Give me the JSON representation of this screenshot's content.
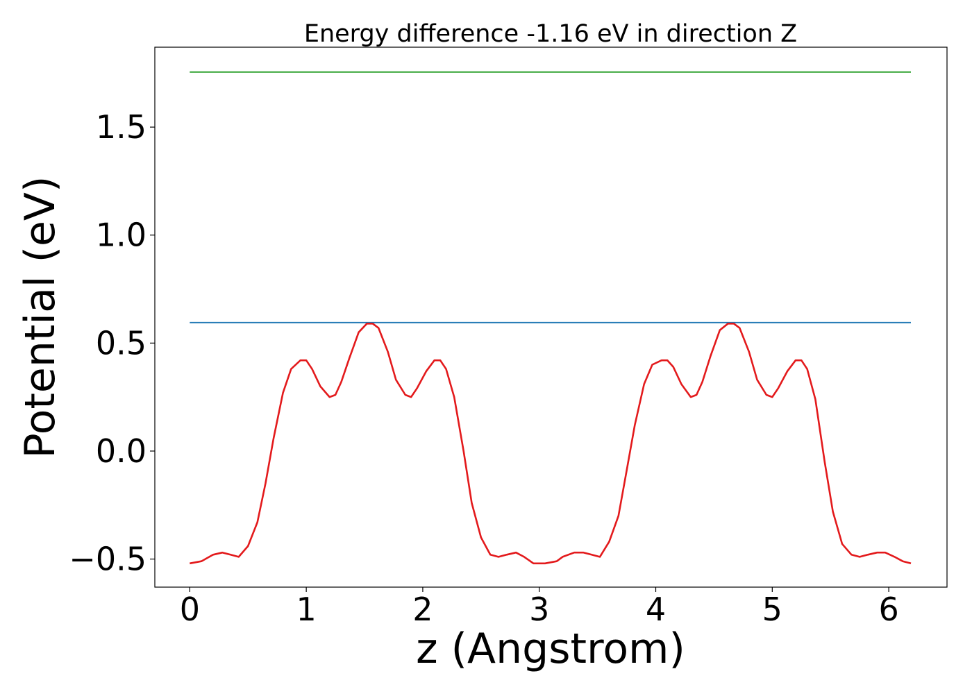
{
  "chart_data": {
    "type": "line",
    "title": "Energy difference -1.16 eV in direction Z",
    "xlabel": "z (Angstrom)",
    "ylabel": "Potential (eV)",
    "xlim": [
      -0.3,
      6.5
    ],
    "ylim": [
      -0.63,
      1.87
    ],
    "x_ticks": [
      0,
      1,
      2,
      3,
      4,
      5,
      6
    ],
    "x_tick_labels": [
      "0",
      "1",
      "2",
      "3",
      "4",
      "5",
      "6"
    ],
    "y_ticks": [
      -0.5,
      0.0,
      0.5,
      1.0,
      1.5
    ],
    "y_tick_labels": [
      "−0.5",
      "0.0",
      "0.5",
      "1.0",
      "1.5"
    ],
    "grid": false,
    "series": [
      {
        "color": "#2ca02c",
        "x": [
          0,
          6.19
        ],
        "y": [
          1.755,
          1.755
        ]
      },
      {
        "color": "#1f77b4",
        "x": [
          0,
          6.19
        ],
        "y": [
          0.595,
          0.595
        ]
      },
      {
        "color": "#e31a1c",
        "x": [
          0,
          0.1,
          0.2,
          0.28,
          0.35,
          0.42,
          0.5,
          0.58,
          0.65,
          0.72,
          0.8,
          0.87,
          0.95,
          1.0,
          1.05,
          1.12,
          1.2,
          1.25,
          1.3,
          1.37,
          1.45,
          1.52,
          1.57,
          1.62,
          1.7,
          1.77,
          1.85,
          1.9,
          1.95,
          2.03,
          2.1,
          2.15,
          2.2,
          2.27,
          2.35,
          2.42,
          2.5,
          2.58,
          2.65,
          2.72,
          2.8,
          2.87,
          2.95,
          3.05,
          3.15,
          3.2,
          3.3,
          3.38,
          3.45,
          3.52,
          3.6,
          3.68,
          3.75,
          3.82,
          3.9,
          3.97,
          4.05,
          4.1,
          4.15,
          4.22,
          4.3,
          4.35,
          4.4,
          4.47,
          4.55,
          4.62,
          4.67,
          4.72,
          4.8,
          4.87,
          4.95,
          5.0,
          5.05,
          5.13,
          5.2,
          5.25,
          5.3,
          5.37,
          5.45,
          5.52,
          5.6,
          5.68,
          5.75,
          5.82,
          5.9,
          5.97,
          6.05,
          6.12,
          6.19
        ],
        "y": [
          -0.52,
          -0.51,
          -0.48,
          -0.47,
          -0.48,
          -0.49,
          -0.44,
          -0.33,
          -0.15,
          0.06,
          0.27,
          0.38,
          0.42,
          0.42,
          0.38,
          0.3,
          0.25,
          0.26,
          0.32,
          0.43,
          0.55,
          0.59,
          0.59,
          0.57,
          0.46,
          0.33,
          0.26,
          0.25,
          0.29,
          0.37,
          0.42,
          0.42,
          0.38,
          0.25,
          0.0,
          -0.24,
          -0.4,
          -0.48,
          -0.49,
          -0.48,
          -0.47,
          -0.49,
          -0.52,
          -0.52,
          -0.51,
          -0.49,
          -0.47,
          -0.47,
          -0.48,
          -0.49,
          -0.42,
          -0.3,
          -0.09,
          0.12,
          0.31,
          0.4,
          0.42,
          0.42,
          0.39,
          0.31,
          0.25,
          0.26,
          0.32,
          0.44,
          0.56,
          0.59,
          0.59,
          0.57,
          0.46,
          0.33,
          0.26,
          0.25,
          0.29,
          0.37,
          0.42,
          0.42,
          0.38,
          0.24,
          -0.05,
          -0.28,
          -0.43,
          -0.48,
          -0.49,
          -0.48,
          -0.47,
          -0.47,
          -0.49,
          -0.51,
          -0.52
        ]
      }
    ]
  }
}
